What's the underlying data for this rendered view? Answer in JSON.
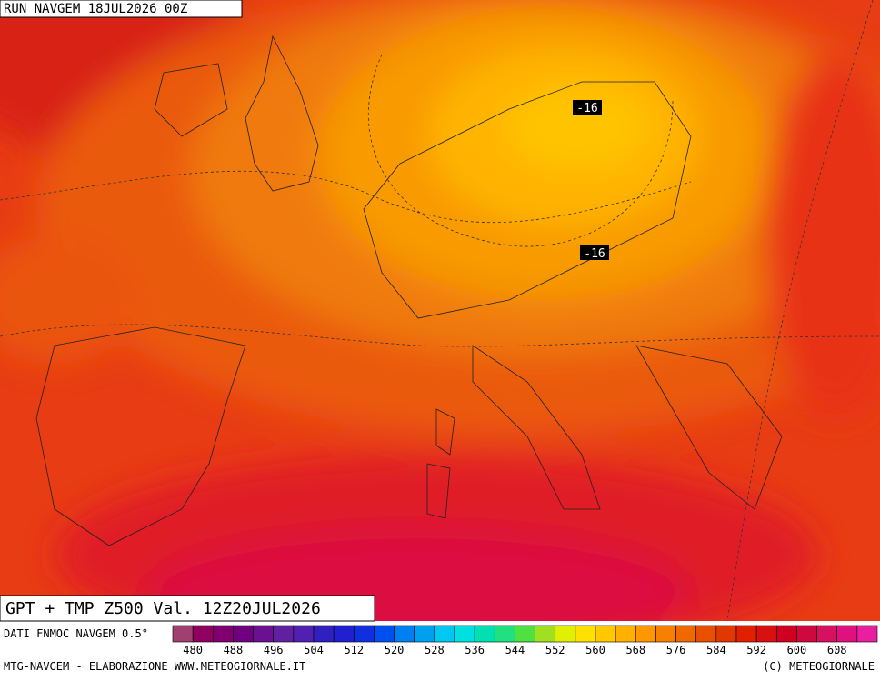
{
  "header": {
    "run": "RUN NAVGEM 18JUL2026 00Z",
    "product": "GPT + TMP Z500 Val. 12Z20JUL2026"
  },
  "map_labels": [
    "-16",
    "-16"
  ],
  "colorbar": {
    "source": "DATI FNMOC NAVGEM 0.5°",
    "labels": [
      480,
      488,
      496,
      504,
      512,
      520,
      528,
      536,
      544,
      552,
      560,
      568,
      576,
      584,
      592,
      600,
      608
    ],
    "colors": [
      "#a04070",
      "#900060",
      "#800070",
      "#700080",
      "#6a1090",
      "#6020a0",
      "#5020b0",
      "#3020c0",
      "#2020d0",
      "#1030e0",
      "#0050f0",
      "#0080f0",
      "#00a0f0",
      "#00c8f0",
      "#00e0e0",
      "#00e0b0",
      "#20e080",
      "#50e040",
      "#a0e020",
      "#e0f000",
      "#ffe000",
      "#ffc800",
      "#ffb000",
      "#ff9800",
      "#f88000",
      "#f06800",
      "#e85000",
      "#e03800",
      "#e02000",
      "#d81010",
      "#d00020",
      "#d00840",
      "#d81060",
      "#e01080",
      "#e820a0"
    ]
  },
  "footer": {
    "left": "MTG-NAVGEM - ELABORAZIONE WWW.METEOGIORNALE.IT",
    "right": "(C) METEOGIORNALE"
  }
}
